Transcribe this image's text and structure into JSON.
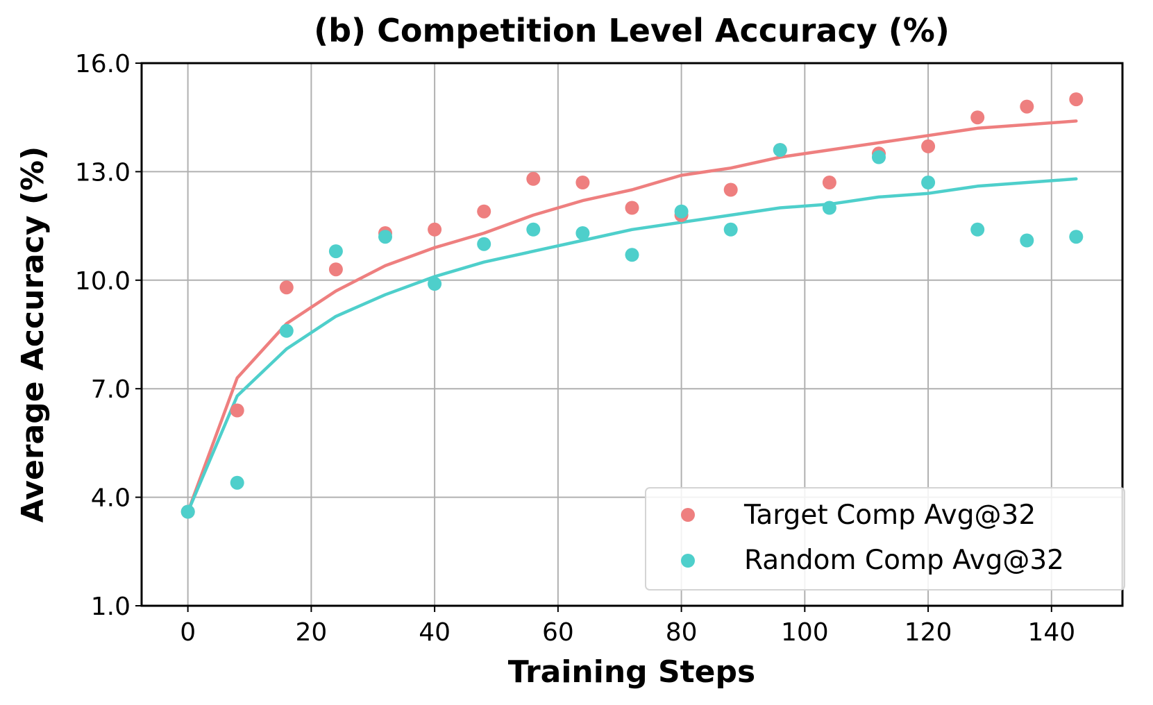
{
  "chart_data": {
    "type": "scatter",
    "title": "(b) Competition Level Accuracy (%)",
    "xlabel": "Training Steps",
    "ylabel": "Average Accuracy (%)",
    "xlim": [
      -7.5,
      151.5
    ],
    "ylim": [
      1.0,
      16.0
    ],
    "xticks": [
      0,
      20,
      40,
      60,
      80,
      100,
      120,
      140
    ],
    "yticks": [
      1.0,
      4.0,
      7.0,
      10.0,
      13.0,
      16.0
    ],
    "xtick_labels": [
      "0",
      "20",
      "40",
      "60",
      "80",
      "100",
      "120",
      "140"
    ],
    "ytick_labels": [
      "1.0",
      "4.0",
      "7.0",
      "10.0",
      "13.0",
      "16.0"
    ],
    "grid": true,
    "legend_position": "lower-right",
    "x": [
      0,
      8,
      16,
      24,
      32,
      40,
      48,
      56,
      64,
      72,
      80,
      88,
      96,
      104,
      112,
      120,
      128,
      136,
      144
    ],
    "series": [
      {
        "name": "Target Comp Avg@32",
        "color": "#ee7f7f",
        "values": [
          3.6,
          6.4,
          9.8,
          10.3,
          11.3,
          11.4,
          11.9,
          12.8,
          12.7,
          12.0,
          11.8,
          12.5,
          13.6,
          12.7,
          13.5,
          13.7,
          14.5,
          14.8,
          15.0
        ],
        "fit_line": [
          3.6,
          7.3,
          8.8,
          9.7,
          10.4,
          10.9,
          11.3,
          11.8,
          12.2,
          12.5,
          12.9,
          13.1,
          13.4,
          13.6,
          13.8,
          14.0,
          14.2,
          14.3,
          14.4
        ]
      },
      {
        "name": "Random Comp Avg@32",
        "color": "#4ecfcb",
        "values": [
          3.6,
          4.4,
          8.6,
          10.8,
          11.2,
          9.9,
          11.0,
          11.4,
          11.3,
          10.7,
          11.9,
          11.4,
          13.6,
          12.0,
          13.4,
          12.7,
          11.4,
          11.1,
          11.2
        ],
        "fit_line": [
          3.6,
          6.8,
          8.1,
          9.0,
          9.6,
          10.1,
          10.5,
          10.8,
          11.1,
          11.4,
          11.6,
          11.8,
          12.0,
          12.1,
          12.3,
          12.4,
          12.6,
          12.7,
          12.8
        ]
      }
    ]
  }
}
